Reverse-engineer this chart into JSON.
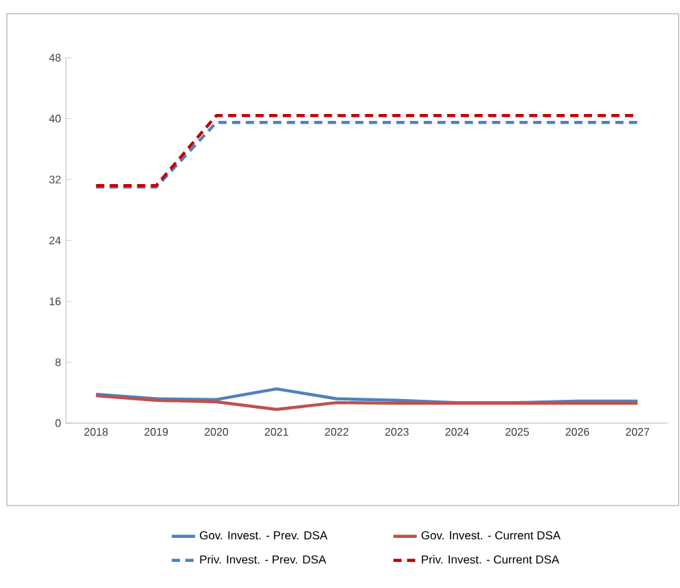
{
  "chart_data": {
    "type": "line",
    "categories": [
      "2018",
      "2019",
      "2020",
      "2021",
      "2022",
      "2023",
      "2024",
      "2025",
      "2026",
      "2027"
    ],
    "ylim": [
      0,
      48
    ],
    "yticks": [
      0,
      8,
      16,
      24,
      32,
      40,
      48
    ],
    "grid": false,
    "legend": "bottom",
    "marker": "none",
    "series": [
      {
        "name": "Gov. Invest. - Prev. DSA",
        "color": "#4f81bd",
        "line_style": "solid",
        "values": [
          3.8,
          3.2,
          3.1,
          4.5,
          3.2,
          3.0,
          2.7,
          2.7,
          2.9,
          2.9
        ]
      },
      {
        "name": "Gov. Invest. - Current DSA",
        "color": "#c0504d",
        "line_style": "solid",
        "values": [
          3.6,
          3.0,
          2.8,
          1.8,
          2.7,
          2.6,
          2.6,
          2.6,
          2.6,
          2.6
        ]
      },
      {
        "name": "Priv. Invest. - Prev. DSA",
        "color": "#4f81bd",
        "line_style": "dashed",
        "values": [
          31.0,
          31.0,
          39.5,
          39.5,
          39.5,
          39.5,
          39.5,
          39.5,
          39.5,
          39.5
        ]
      },
      {
        "name": "Priv. Invest. - Current DSA",
        "color": "#c00000",
        "line_style": "dashed",
        "values": [
          31.2,
          31.2,
          40.4,
          40.4,
          40.4,
          40.4,
          40.4,
          40.4,
          40.4,
          40.4
        ]
      }
    ]
  }
}
